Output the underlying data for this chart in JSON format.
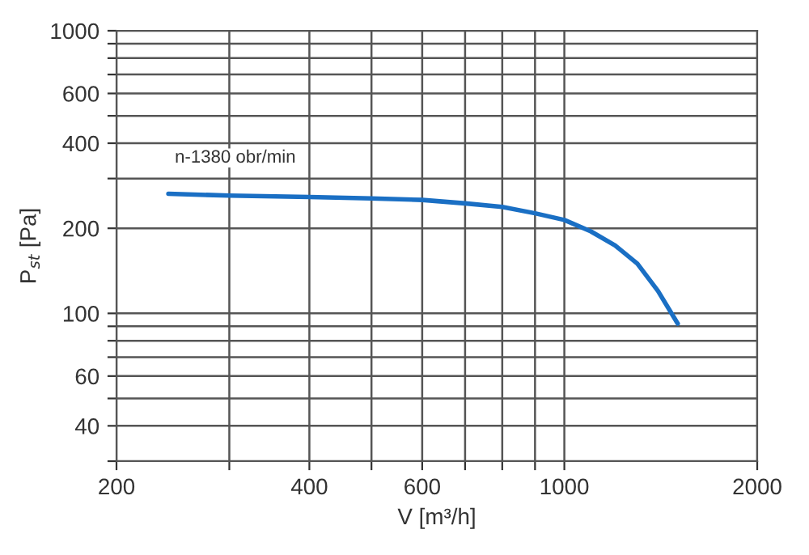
{
  "chart_data": {
    "type": "line",
    "xlabel": "V [m³/h]",
    "ylabel": "P$_{st}$ [Pa]",
    "log": "xy",
    "xlim": [
      200,
      2000
    ],
    "xticks": [
      200,
      {
        "value": 300,
        "label": null
      },
      400,
      {
        "value": 500,
        "label": null
      },
      600,
      {
        "value": 700,
        "label": null
      },
      {
        "value": 800,
        "label": null
      },
      {
        "value": 900,
        "label": null
      },
      1000,
      2000
    ],
    "ylim": [
      30,
      1000
    ],
    "yticks": [
      {
        "value": 30,
        "label": null
      },
      40,
      {
        "value": 50,
        "label": null
      },
      60,
      {
        "value": 70,
        "label": null
      },
      {
        "value": 80,
        "label": null
      },
      {
        "value": 90,
        "label": null
      },
      100,
      200,
      {
        "value": 300,
        "label": null
      },
      400,
      {
        "value": 500,
        "label": null
      },
      600,
      {
        "value": 700,
        "label": null
      },
      {
        "value": 800,
        "label": null
      },
      {
        "value": 900,
        "label": null
      },
      1000
    ],
    "grid": true,
    "marker": "none",
    "line_style": "solid",
    "series": [
      {
        "color": "#1a6fc4",
        "x": [
          241,
          300,
          400,
          500,
          600,
          700,
          800,
          900,
          1000,
          1100,
          1200,
          1300,
          1400,
          1503
        ],
        "values": [
          265,
          261,
          258,
          255,
          252,
          245,
          238,
          226,
          214,
          195,
          174,
          150,
          120,
          92
        ]
      }
    ],
    "annotations": [
      "n-1380 obr/min"
    ]
  }
}
